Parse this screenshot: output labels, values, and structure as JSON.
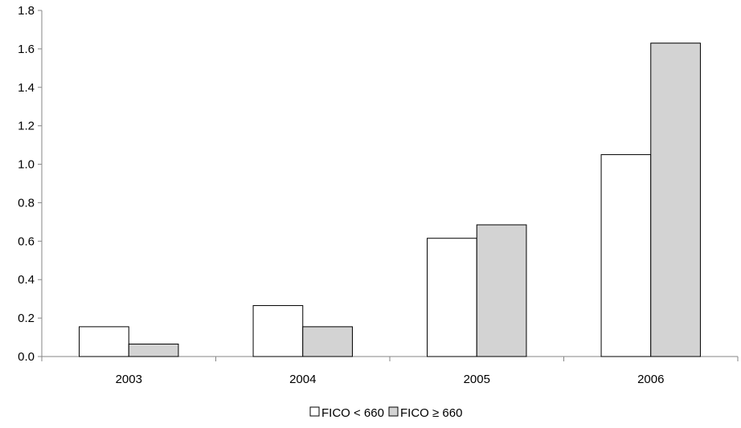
{
  "chart_data": {
    "type": "bar",
    "categories": [
      "2003",
      "2004",
      "2005",
      "2006"
    ],
    "series": [
      {
        "name": "FICO < 660",
        "values": [
          0.155,
          0.265,
          0.615,
          1.05
        ],
        "color": "#ffffff"
      },
      {
        "name": "FICO ≥ 660",
        "values": [
          0.065,
          0.155,
          0.685,
          1.63
        ],
        "color": "#d3d3d3"
      }
    ],
    "title": "",
    "xlabel": "",
    "ylabel": "",
    "ylim": [
      0,
      1.8
    ],
    "yticks": [
      "0.0",
      "0.2",
      "0.4",
      "0.6",
      "0.8",
      "1.0",
      "1.2",
      "1.4",
      "1.6",
      "1.8"
    ],
    "grid": false,
    "legend_position": "bottom-center",
    "bar_outline_color": "#000000"
  }
}
